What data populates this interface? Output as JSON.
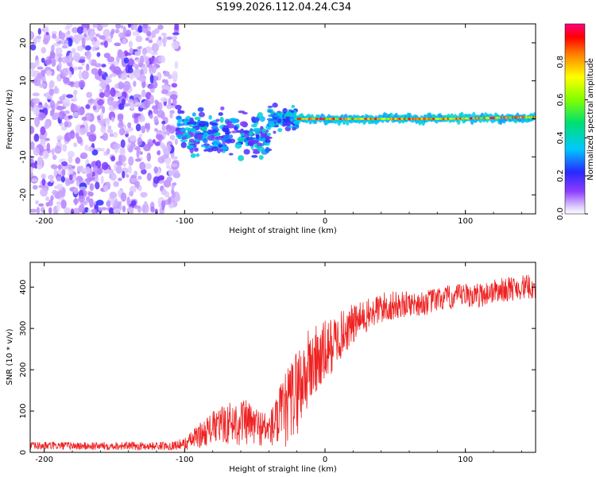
{
  "title": "S199.2026.112.04.24.C34",
  "colors": {
    "snr_line": "#ee2222",
    "background": "#ffffff",
    "axis": "#000000"
  },
  "chart_data": [
    {
      "type": "heatmap",
      "name": "spectrogram",
      "xlabel": "Height of straight line (km)",
      "ylabel": "Frequency (Hz)",
      "xlim": [
        -210,
        150
      ],
      "ylim": [
        -25,
        25
      ],
      "xticks": [
        -200,
        -100,
        0,
        100
      ],
      "yticks": [
        -20,
        -10,
        0,
        10,
        20
      ],
      "colorbar": {
        "label": "Normalized spectral amplitude",
        "range": [
          0,
          1
        ],
        "ticks": [
          0.0,
          0.2,
          0.4,
          0.6,
          0.8
        ],
        "tick_labels": [
          "0.0",
          "0.2",
          "0.4",
          "0.6",
          "0.8"
        ],
        "colormap": "rainbow (white-violet-blue-cyan-green-yellow-red-magenta)"
      },
      "segments": [
        {
          "x_range": [
            -210,
            -105
          ],
          "freq_center_hz": 0,
          "freq_spread_hz": 25,
          "amplitude": "0.05-0.25",
          "description": "broadband noise"
        },
        {
          "x_range": [
            -105,
            -40
          ],
          "freq_center_hz": -3,
          "freq_spread_hz": 10,
          "amplitude": "0.2-0.45",
          "description": "scattered clusters"
        },
        {
          "x_range": [
            -40,
            -20
          ],
          "freq_center_hz": 0,
          "freq_spread_hz": 5,
          "amplitude": "0.2-0.4"
        },
        {
          "x_range": [
            -20,
            80
          ],
          "freq_center_hz": 0,
          "freq_spread_hz": 1,
          "amplitude": "0.5-1.0",
          "description": "narrow tone"
        },
        {
          "x_range": [
            80,
            150
          ],
          "freq_center_hz": 0.5,
          "freq_spread_hz": 2,
          "amplitude": "0.4-0.9",
          "description": "narrow tone, slight upward drift"
        }
      ]
    },
    {
      "type": "line",
      "name": "snr",
      "xlabel": "Height of straight line (km)",
      "ylabel": "SNR (10 * v/v)",
      "xlim": [
        -210,
        150
      ],
      "ylim": [
        0,
        460
      ],
      "xticks": [
        -200,
        -100,
        0,
        100
      ],
      "yticks": [
        0,
        100,
        200,
        300,
        400
      ],
      "series": [
        {
          "name": "SNR",
          "x": [
            -210,
            -190,
            -170,
            -150,
            -130,
            -110,
            -100,
            -90,
            -80,
            -70,
            -60,
            -50,
            -40,
            -30,
            -20,
            -10,
            0,
            10,
            20,
            30,
            40,
            50,
            60,
            70,
            80,
            90,
            100,
            110,
            120,
            130,
            140,
            150
          ],
          "y": [
            15,
            16,
            15,
            16,
            15,
            16,
            20,
            40,
            60,
            70,
            75,
            65,
            55,
            90,
            150,
            210,
            240,
            280,
            310,
            330,
            350,
            355,
            360,
            360,
            370,
            375,
            380,
            380,
            390,
            395,
            400,
            400
          ],
          "noise_amplitude": [
            10,
            10,
            10,
            10,
            10,
            10,
            15,
            30,
            40,
            50,
            60,
            50,
            40,
            90,
            110,
            100,
            80,
            60,
            50,
            40,
            40,
            35,
            30,
            30,
            30,
            30,
            30,
            30,
            30,
            30,
            30,
            30
          ]
        }
      ]
    }
  ]
}
